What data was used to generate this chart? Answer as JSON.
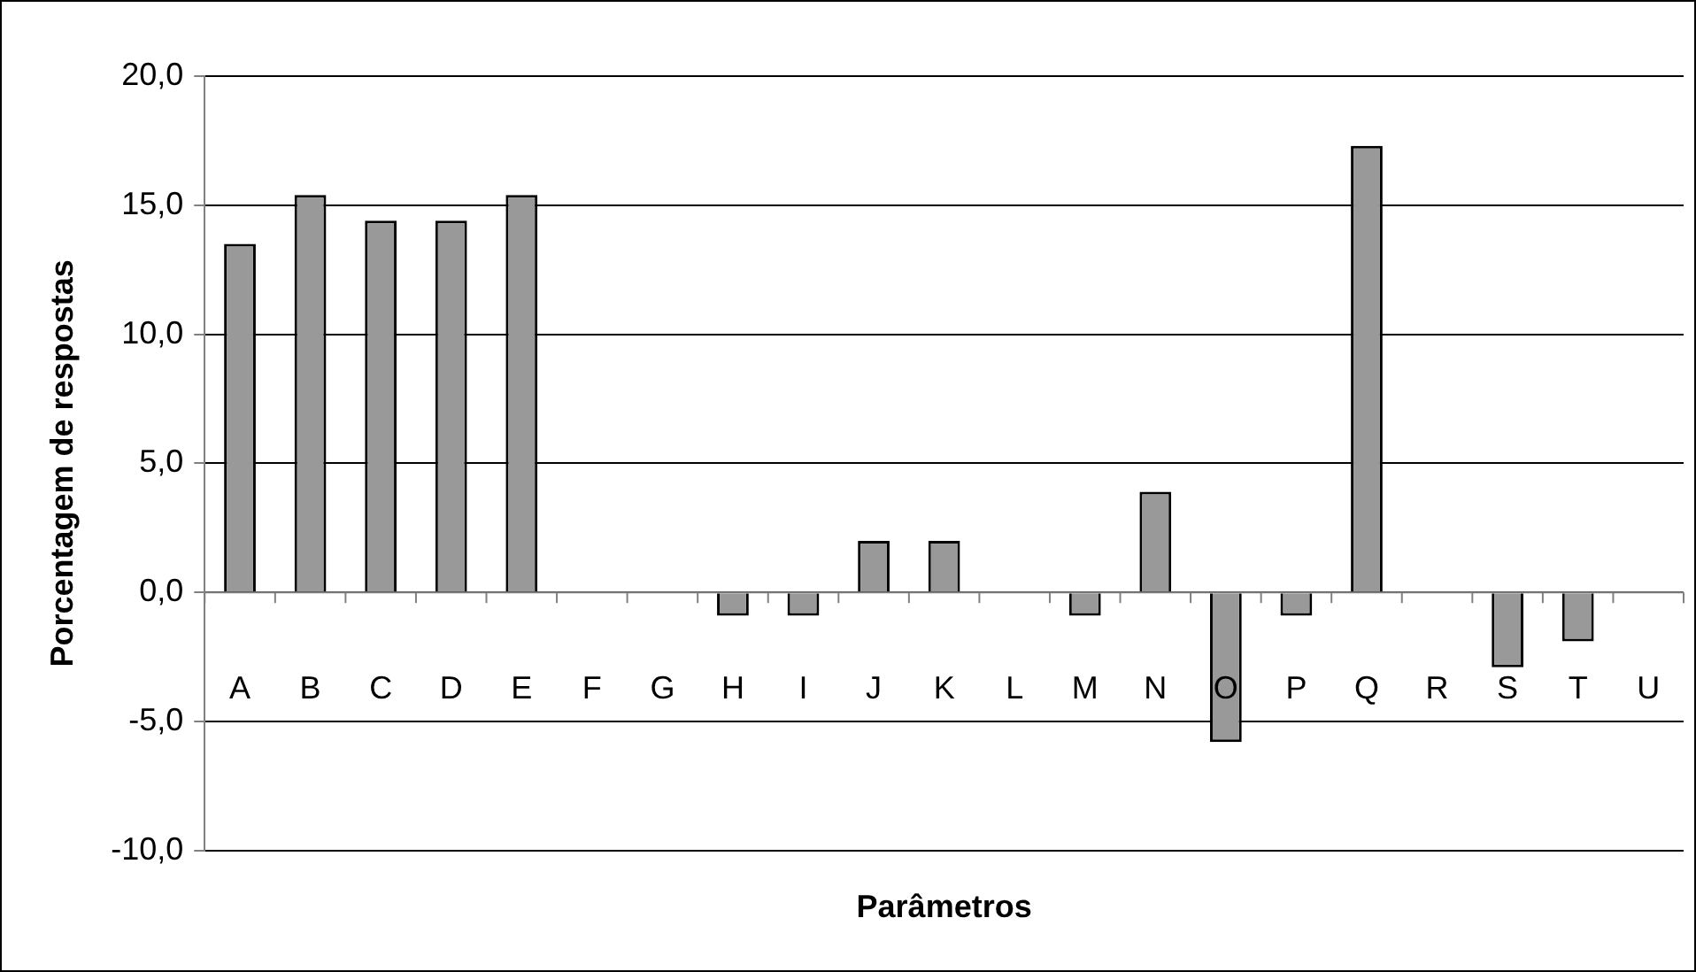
{
  "chart_data": {
    "type": "bar",
    "xlabel": "Parâmetros",
    "ylabel": "Porcentagem de respostas",
    "categories": [
      "A",
      "B",
      "C",
      "D",
      "E",
      "F",
      "G",
      "H",
      "I",
      "J",
      "K",
      "L",
      "M",
      "N",
      "O",
      "P",
      "Q",
      "R",
      "S",
      "T",
      "U"
    ],
    "values": [
      13.5,
      15.4,
      14.4,
      14.4,
      15.4,
      0,
      0,
      -0.9,
      -0.9,
      2.0,
      2.0,
      0,
      -0.9,
      3.9,
      -5.8,
      -0.9,
      17.3,
      0,
      -2.9,
      -1.9,
      0
    ],
    "color": "#999999",
    "ylim": [
      -10,
      20
    ],
    "yticks": [
      {
        "value": -10,
        "label": "-10,0"
      },
      {
        "value": -5,
        "label": "-5,0"
      },
      {
        "value": 0,
        "label": "0,0"
      },
      {
        "value": 5,
        "label": "5,0"
      },
      {
        "value": 10,
        "label": "10,0"
      },
      {
        "value": 15,
        "label": "15,0"
      },
      {
        "value": 20,
        "label": "20,0"
      }
    ],
    "grid": "y",
    "legend": false
  }
}
